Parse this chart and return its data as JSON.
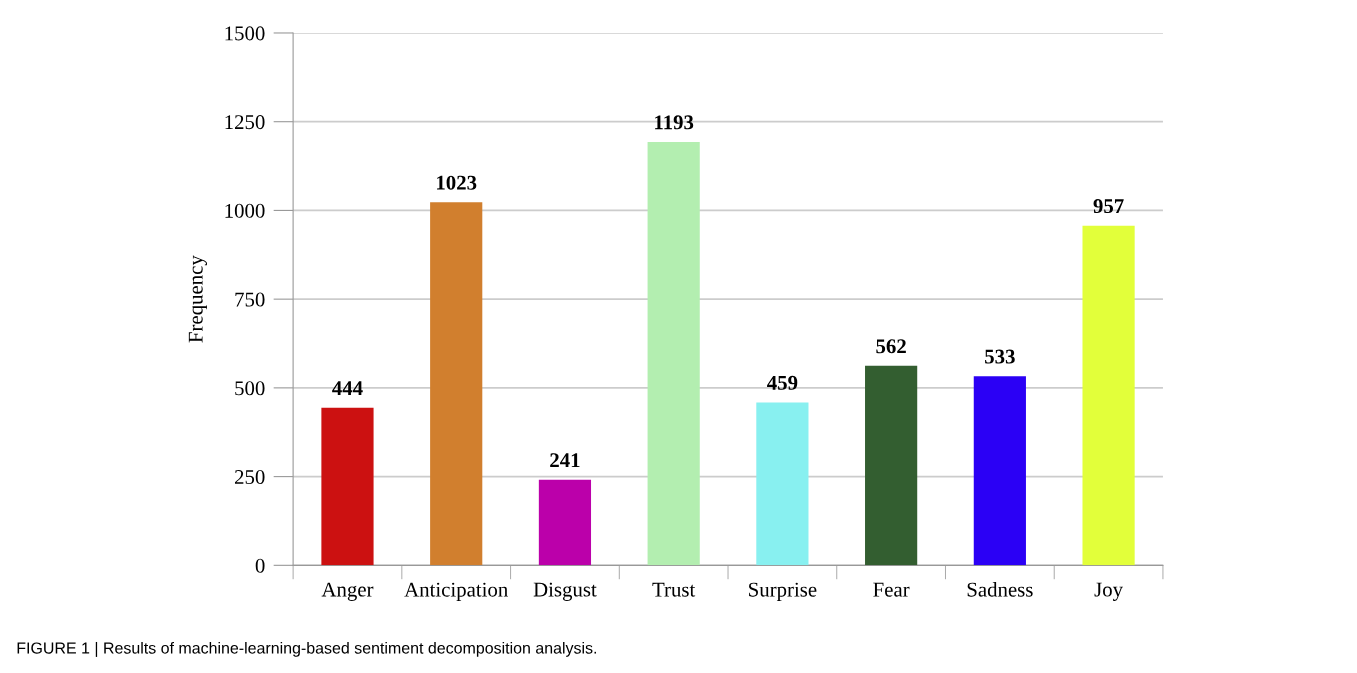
{
  "chart_data": {
    "type": "bar",
    "ylabel": "Frequency",
    "categories": [
      "Anger",
      "Anticipation",
      "Disgust",
      "Trust",
      "Surprise",
      "Fear",
      "Sadness",
      "Joy"
    ],
    "values": [
      444,
      1023,
      241,
      1193,
      459,
      562,
      533,
      957
    ],
    "colors": [
      "#cc1111",
      "#d17f2e",
      "#bb00aa",
      "#b3eeb0",
      "#88f0f0",
      "#335e30",
      "#2b00f5",
      "#e2ff3a"
    ],
    "ylim": [
      0,
      1500
    ],
    "yticks": [
      0,
      250,
      500,
      750,
      1000,
      1250,
      1500
    ],
    "grid": "y",
    "data_labels": true,
    "annotations": [
      "FIGURE 1 | Results of machine-learning-based sentiment decomposition analysis."
    ]
  }
}
